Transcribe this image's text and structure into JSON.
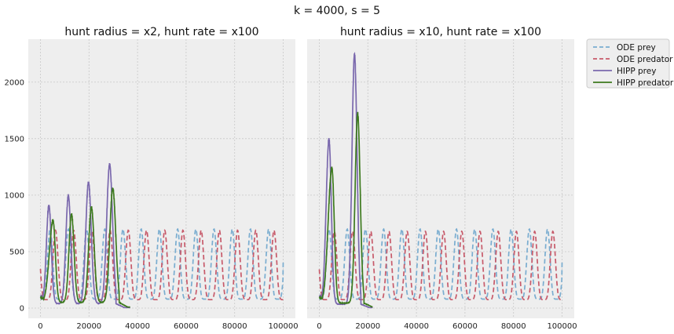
{
  "suptitle": "k = 4000, s = 5",
  "colors": {
    "ode_prey": "#7aadd0",
    "ode_predator": "#c75a6a",
    "hipp_prey": "#7a68ad",
    "hipp_predator": "#3d7a1e",
    "axes_bg": "#eeeeee",
    "grid": "#c8c8c8"
  },
  "legend": {
    "placement": "outside-upper-right",
    "entries": [
      {
        "label": "ODE prey",
        "style": "dashed",
        "color": "#7aadd0"
      },
      {
        "label": "ODE predator",
        "style": "dashed",
        "color": "#c75a6a"
      },
      {
        "label": "HIPP prey",
        "style": "solid",
        "color": "#7a68ad"
      },
      {
        "label": "HIPP predator",
        "style": "solid",
        "color": "#3d7a1e"
      }
    ]
  },
  "chart_data": [
    {
      "type": "line",
      "title": "hunt radius = x2, hunt rate = x100",
      "xlim": [
        -5000,
        105000
      ],
      "ylim": [
        -90,
        2380
      ],
      "xticks": [
        0,
        20000,
        40000,
        60000,
        80000,
        100000
      ],
      "yticks": [
        0,
        500,
        1000,
        1500,
        2000
      ],
      "grid": true,
      "sharey": true,
      "series": [
        {
          "name": "ODE prey",
          "style": "dashed",
          "color": "#7aadd0",
          "x_end": 100000,
          "oscillation": {
            "period": 7500,
            "first_peak_x": 4000,
            "baseline": 80,
            "peak": 700,
            "end_value": 410
          }
        },
        {
          "name": "ODE predator",
          "style": "dashed",
          "color": "#c75a6a",
          "x_end": 100000,
          "oscillation": {
            "period": 7500,
            "first_peak_x": 6200,
            "baseline": 75,
            "peak": 690,
            "end_value": 75
          }
        },
        {
          "name": "HIPP prey",
          "style": "solid",
          "color": "#7a68ad",
          "x_start": 0,
          "x_end": 37000,
          "start_value": 110,
          "peaks": [
            {
              "x": 3500,
              "y": 910
            },
            {
              "x": 11500,
              "y": 995
            },
            {
              "x": 19800,
              "y": 1115
            },
            {
              "x": 28500,
              "y": 1270
            }
          ],
          "trough": 40,
          "end_value": 5
        },
        {
          "name": "HIPP predator",
          "style": "solid",
          "color": "#3d7a1e",
          "x_start": 0,
          "x_end": 37000,
          "start_value": 95,
          "peaks": [
            {
              "x": 5200,
              "y": 775
            },
            {
              "x": 12800,
              "y": 830
            },
            {
              "x": 21000,
              "y": 890
            },
            {
              "x": 29800,
              "y": 1060
            }
          ],
          "trough": 50,
          "end_value": 10
        }
      ]
    },
    {
      "type": "line",
      "title": "hunt radius = x10, hunt rate = x100",
      "xlim": [
        -5000,
        105000
      ],
      "ylim": [
        -90,
        2380
      ],
      "xticks": [
        0,
        20000,
        40000,
        60000,
        80000,
        100000
      ],
      "yticks": [
        0,
        500,
        1000,
        1500,
        2000
      ],
      "grid": true,
      "sharey": true,
      "series": [
        {
          "name": "ODE prey",
          "style": "dashed",
          "color": "#7aadd0",
          "x_end": 100000,
          "oscillation": {
            "period": 7500,
            "first_peak_x": 4000,
            "baseline": 80,
            "peak": 700,
            "end_value": 410
          }
        },
        {
          "name": "ODE predator",
          "style": "dashed",
          "color": "#c75a6a",
          "x_end": 100000,
          "oscillation": {
            "period": 7500,
            "first_peak_x": 6200,
            "baseline": 75,
            "peak": 680,
            "end_value": 75
          }
        },
        {
          "name": "HIPP prey",
          "style": "solid",
          "color": "#7a68ad",
          "x_start": 0,
          "x_end": 22000,
          "start_value": 110,
          "peaks": [
            {
              "x": 4000,
              "y": 1490
            },
            {
              "x": 14500,
              "y": 2250
            }
          ],
          "trough": 35,
          "end_value": 5
        },
        {
          "name": "HIPP predator",
          "style": "solid",
          "color": "#3d7a1e",
          "x_start": 0,
          "x_end": 22000,
          "start_value": 95,
          "peaks": [
            {
              "x": 5200,
              "y": 1240
            },
            {
              "x": 15800,
              "y": 1720
            }
          ],
          "trough": 45,
          "end_value": 10
        }
      ]
    }
  ]
}
